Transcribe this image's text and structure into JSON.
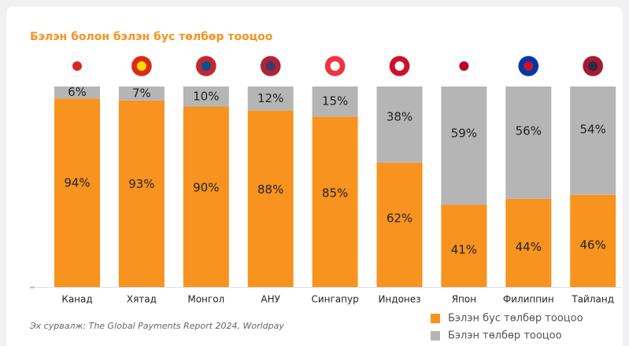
{
  "chart_data": {
    "type": "stacked_bar",
    "title": "Бэлэн болон бэлэн бус төлбөр тооцоо",
    "source": "Эх сурвалж: The Global Payments Report 2024, Worldpay",
    "categories": [
      "Канад",
      "Хятад",
      "Монгол",
      "АНУ",
      "Сингапур",
      "Индонез",
      "Япон",
      "Филиппин",
      "Тайланд"
    ],
    "series": [
      {
        "name": "Бэлэн бус төлбөр тооцоо",
        "color": "#f7931e",
        "values": [
          94,
          93,
          90,
          88,
          85,
          62,
          41,
          44,
          46
        ],
        "value_labels": [
          "94%",
          "93%",
          "90%",
          "88%",
          "85%",
          "62%",
          "41%",
          "44%",
          "46%"
        ]
      },
      {
        "name": "Бэлэн төлбөр тооцоо",
        "color": "#b5b5b5",
        "values": [
          6,
          7,
          10,
          12,
          15,
          38,
          59,
          56,
          54
        ],
        "value_labels": [
          "6%",
          "7%",
          "10%",
          "12%",
          "15%",
          "38%",
          "59%",
          "56%",
          "54%"
        ]
      }
    ],
    "ylim": [
      0,
      100
    ],
    "legend": "bottom-right"
  }
}
